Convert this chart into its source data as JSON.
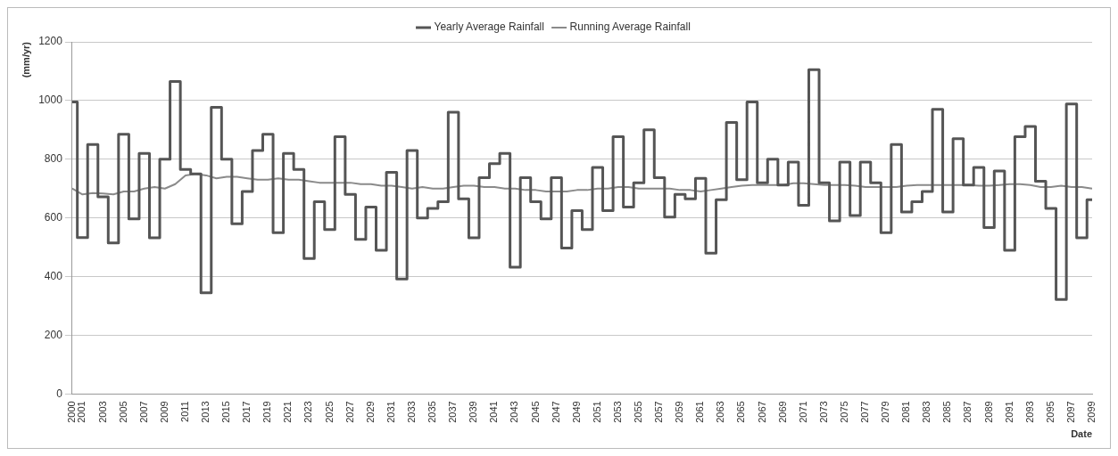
{
  "chart_data": {
    "type": "line",
    "xlabel": "Date",
    "ylabel": "(mm/yr)",
    "categories": [
      "2000",
      "2001",
      null,
      "2003",
      null,
      "2005",
      null,
      "2007",
      null,
      "2009",
      null,
      "2011",
      null,
      "2013",
      null,
      "2015",
      null,
      "2017",
      null,
      "2019",
      null,
      "2021",
      null,
      "2023",
      null,
      "2025",
      null,
      "2027",
      null,
      "2029",
      null,
      "2031",
      null,
      "2033",
      null,
      "2035",
      null,
      "2037",
      null,
      "2039",
      null,
      "2041",
      null,
      "2043",
      null,
      "2045",
      null,
      "2047",
      null,
      "2049",
      null,
      "2051",
      null,
      "2053",
      null,
      "2055",
      null,
      "2057",
      null,
      "2059",
      null,
      "2061",
      null,
      "2063",
      null,
      "2065",
      null,
      "2067",
      null,
      "2069",
      null,
      "2071",
      null,
      "2073",
      null,
      "2075",
      null,
      "2077",
      null,
      "2079",
      null,
      "2081",
      null,
      "2083",
      null,
      "2085",
      null,
      "2087",
      null,
      "2089",
      null,
      "2091",
      null,
      "2093",
      null,
      "2095",
      null,
      "2097",
      null,
      "2099"
    ],
    "series": [
      {
        "name": "Yearly Average Rainfall",
        "type": "step",
        "color": "#555555",
        "values": [
          995,
          533,
          850,
          672,
          515,
          885,
          597,
          820,
          532,
          800,
          1065,
          765,
          750,
          345,
          977,
          800,
          580,
          690,
          830,
          885,
          550,
          820,
          765,
          462,
          655,
          560,
          877,
          680,
          527,
          637,
          490,
          755,
          392,
          830,
          600,
          632,
          655,
          960,
          665,
          532,
          737,
          785,
          820,
          432,
          737,
          655,
          597,
          737,
          497,
          625,
          560,
          772,
          625,
          877,
          637,
          720,
          900,
          737,
          603,
          680,
          665,
          735,
          480,
          662,
          925,
          730,
          995,
          720,
          800,
          712,
          790,
          643,
          1105,
          720,
          590,
          790,
          608,
          790,
          720,
          550,
          850,
          620,
          655,
          690,
          970,
          620,
          870,
          712,
          772,
          567,
          760,
          490,
          877,
          912,
          725,
          632,
          322,
          988,
          532,
          662
        ]
      },
      {
        "name": "Running Average Rainfall",
        "type": "line",
        "color": "#8a8a8a",
        "values": [
          700,
          680,
          685,
          683,
          680,
          690,
          690,
          700,
          705,
          700,
          715,
          745,
          750,
          745,
          735,
          740,
          740,
          735,
          730,
          730,
          735,
          730,
          730,
          725,
          720,
          720,
          720,
          720,
          715,
          715,
          710,
          710,
          705,
          700,
          705,
          700,
          700,
          705,
          710,
          710,
          705,
          705,
          700,
          700,
          695,
          695,
          690,
          690,
          690,
          695,
          695,
          700,
          700,
          705,
          705,
          700,
          700,
          700,
          700,
          695,
          695,
          690,
          695,
          700,
          705,
          710,
          712,
          712,
          712,
          712,
          718,
          718,
          715,
          712,
          712,
          712,
          710,
          705,
          705,
          705,
          705,
          710,
          712,
          712,
          712,
          712,
          712,
          712,
          710,
          710,
          712,
          715,
          715,
          712,
          705,
          705,
          710,
          705,
          705,
          700
        ]
      }
    ],
    "ylim": [
      0,
      1200
    ],
    "yticks": [
      0,
      200,
      400,
      600,
      800,
      1000,
      1200
    ],
    "grid": "y",
    "legend": "top",
    "marker": "none",
    "line_style": "solid"
  }
}
